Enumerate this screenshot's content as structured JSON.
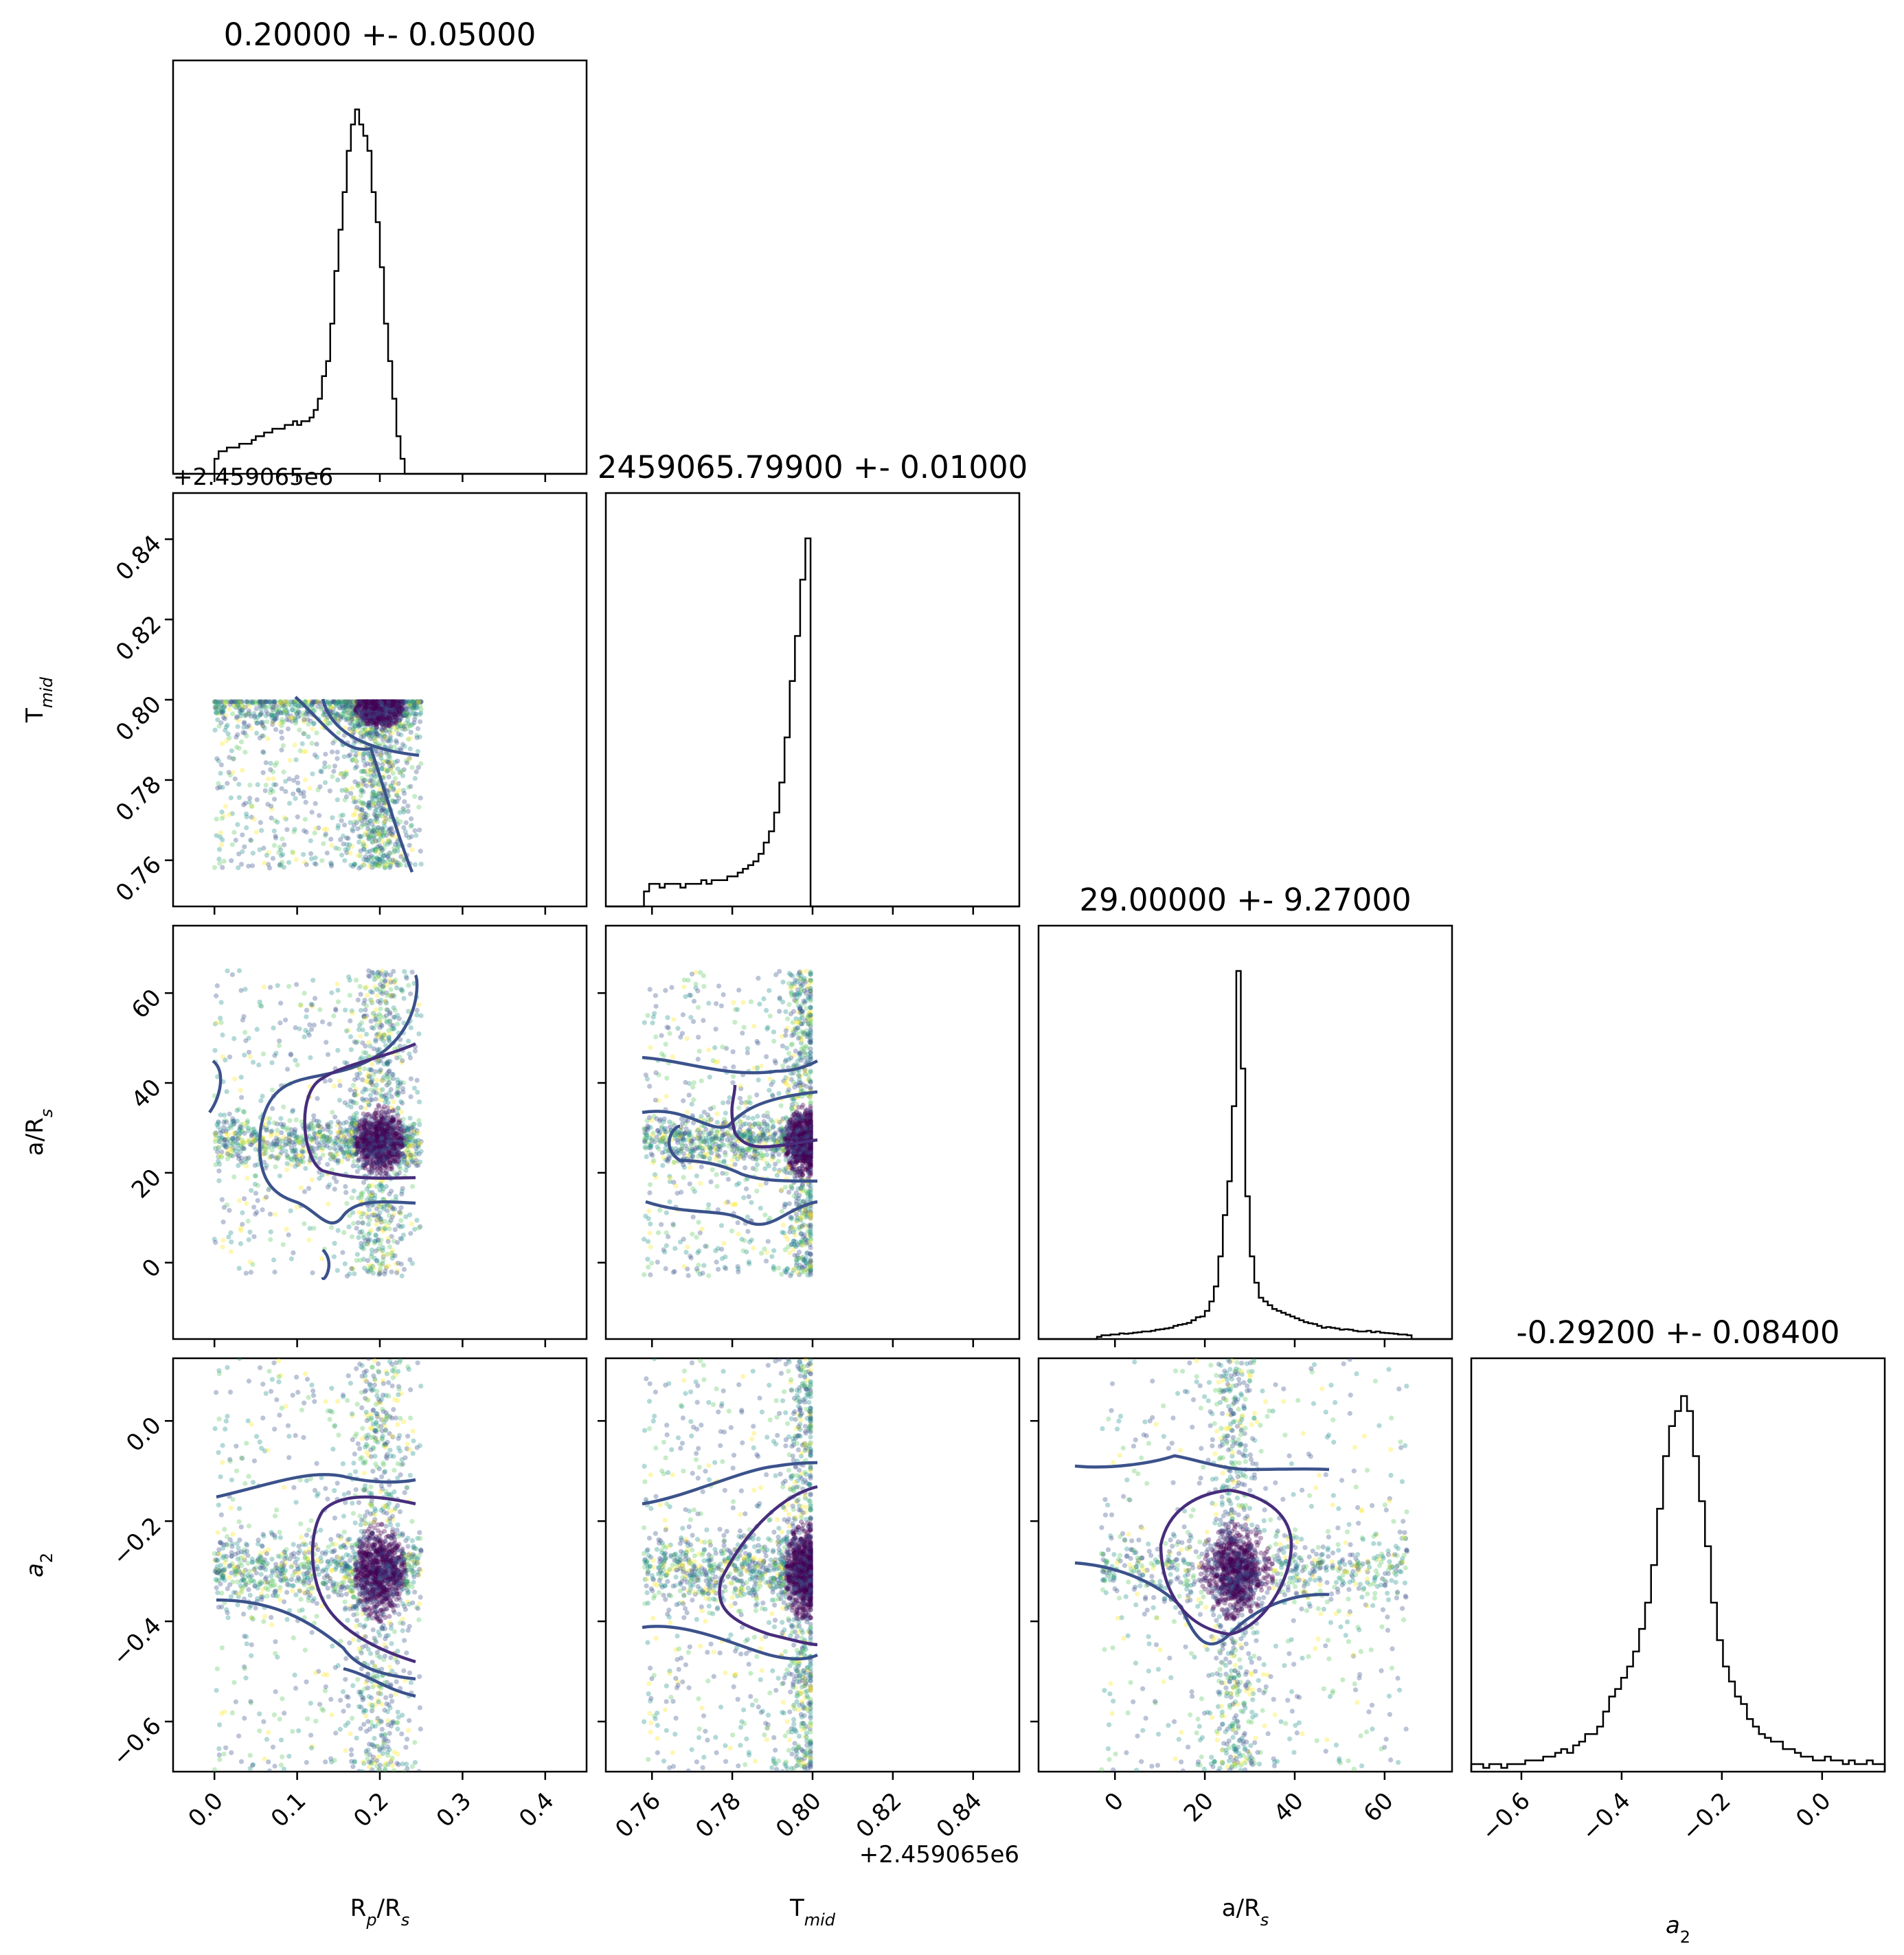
{
  "chart_data": {
    "type": "corner",
    "parameters": [
      {
        "key": "rp",
        "label": "R",
        "label_sub": "p",
        "label_rest": "/R",
        "label_sub2": "s",
        "range": [
          -0.05,
          0.45
        ],
        "ticks": [
          0.0,
          0.1,
          0.2,
          0.3,
          0.4
        ],
        "tick_labels": [
          "0.0",
          "0.1",
          "0.2",
          "0.3",
          "0.4"
        ],
        "title": "0.20000 +- 0.05000"
      },
      {
        "key": "tmid",
        "label": "T",
        "label_sub": "mid",
        "label_rest": "",
        "label_sub2": "",
        "range": [
          0.7485,
          0.8515
        ],
        "ticks": [
          0.76,
          0.78,
          0.8,
          0.82,
          0.84
        ],
        "tick_labels": [
          "0.76",
          "0.78",
          "0.80",
          "0.82",
          "0.84"
        ],
        "offset": "+2.459065e6",
        "title": "2459065.79900 +- 0.01000"
      },
      {
        "key": "ars",
        "label": "a/R",
        "label_sub": "s",
        "label_rest": "",
        "label_sub2": "",
        "range": [
          -17,
          75
        ],
        "ticks": [
          0,
          20,
          40,
          60
        ],
        "tick_labels": [
          "0",
          "20",
          "40",
          "60"
        ],
        "title": "29.00000 +- 9.27000"
      },
      {
        "key": "a2",
        "label": "a",
        "label_sub": "2",
        "label_rest": "",
        "label_sub2": "",
        "italic": true,
        "range": [
          -0.7,
          0.125
        ],
        "ticks": [
          -0.6,
          -0.4,
          -0.2,
          0.0
        ],
        "tick_labels": [
          "−0.6",
          "−0.4",
          "−0.2",
          "0.0"
        ],
        "title": "-0.29200 +- 0.08400"
      }
    ],
    "histograms": {
      "rp": {
        "start": 0.0,
        "end": 0.25,
        "counts": [
          0.04,
          0.06,
          0.06,
          0.07,
          0.07,
          0.07,
          0.08,
          0.08,
          0.08,
          0.09,
          0.1,
          0.1,
          0.11,
          0.11,
          0.12,
          0.12,
          0.12,
          0.13,
          0.13,
          0.14,
          0.13,
          0.14,
          0.14,
          0.15,
          0.17,
          0.2,
          0.26,
          0.3,
          0.4,
          0.54,
          0.65,
          0.75,
          0.86,
          0.93,
          0.97,
          0.93,
          0.9,
          0.86,
          0.75,
          0.67,
          0.55,
          0.4,
          0.3,
          0.2,
          0.1,
          0.04,
          0.0,
          0.0,
          0.0,
          0.0
        ]
      },
      "tmid": {
        "start": 0.758,
        "end": 0.7995,
        "counts": [
          0.04,
          0.06,
          0.06,
          0.05,
          0.06,
          0.06,
          0.06,
          0.05,
          0.06,
          0.06,
          0.06,
          0.07,
          0.06,
          0.07,
          0.07,
          0.07,
          0.08,
          0.08,
          0.09,
          0.1,
          0.11,
          0.12,
          0.14,
          0.17,
          0.2,
          0.25,
          0.33,
          0.45,
          0.6,
          0.72,
          0.87,
          0.98
        ]
      },
      "ars": {
        "start": -4,
        "end": 66,
        "counts": [
          0.006,
          0.01,
          0.01,
          0.012,
          0.012,
          0.015,
          0.014,
          0.015,
          0.017,
          0.018,
          0.02,
          0.02,
          0.022,
          0.025,
          0.026,
          0.028,
          0.03,
          0.035,
          0.038,
          0.04,
          0.043,
          0.05,
          0.058,
          0.06,
          0.075,
          0.1,
          0.14,
          0.22,
          0.33,
          0.42,
          0.62,
          0.98,
          0.72,
          0.38,
          0.22,
          0.15,
          0.11,
          0.1,
          0.09,
          0.08,
          0.075,
          0.07,
          0.065,
          0.06,
          0.055,
          0.05,
          0.045,
          0.042,
          0.04,
          0.035,
          0.03,
          0.032,
          0.03,
          0.028,
          0.025,
          0.026,
          0.025,
          0.022,
          0.02,
          0.02,
          0.022,
          0.018,
          0.02,
          0.017,
          0.016,
          0.015,
          0.014,
          0.012,
          0.012,
          0.01
        ]
      },
      "a2": {
        "start": -0.7,
        "end": 0.125,
        "counts": [
          0.02,
          0.02,
          0.01,
          0.02,
          0.02,
          0.01,
          0.02,
          0.02,
          0.02,
          0.03,
          0.03,
          0.03,
          0.04,
          0.04,
          0.05,
          0.06,
          0.05,
          0.07,
          0.08,
          0.1,
          0.1,
          0.12,
          0.16,
          0.2,
          0.22,
          0.25,
          0.28,
          0.32,
          0.38,
          0.45,
          0.55,
          0.7,
          0.84,
          0.92,
          0.96,
          1.0,
          0.96,
          0.84,
          0.72,
          0.6,
          0.45,
          0.35,
          0.28,
          0.24,
          0.2,
          0.18,
          0.14,
          0.12,
          0.1,
          0.09,
          0.08,
          0.08,
          0.06,
          0.06,
          0.05,
          0.04,
          0.04,
          0.03,
          0.03,
          0.04,
          0.03,
          0.03,
          0.02,
          0.03,
          0.02,
          0.02,
          0.03,
          0.02,
          0.02
        ]
      }
    },
    "peaks": {
      "rp": 0.2,
      "tmid": 0.798,
      "ars": 27,
      "a2": -0.3
    },
    "grid": false,
    "colormap": [
      "#440154",
      "#3b528b",
      "#21918c",
      "#5ec962",
      "#fde725"
    ],
    "contour_color": "#3b528b",
    "inner_contour_color": "#472d7b",
    "hist_color": "#000000"
  }
}
